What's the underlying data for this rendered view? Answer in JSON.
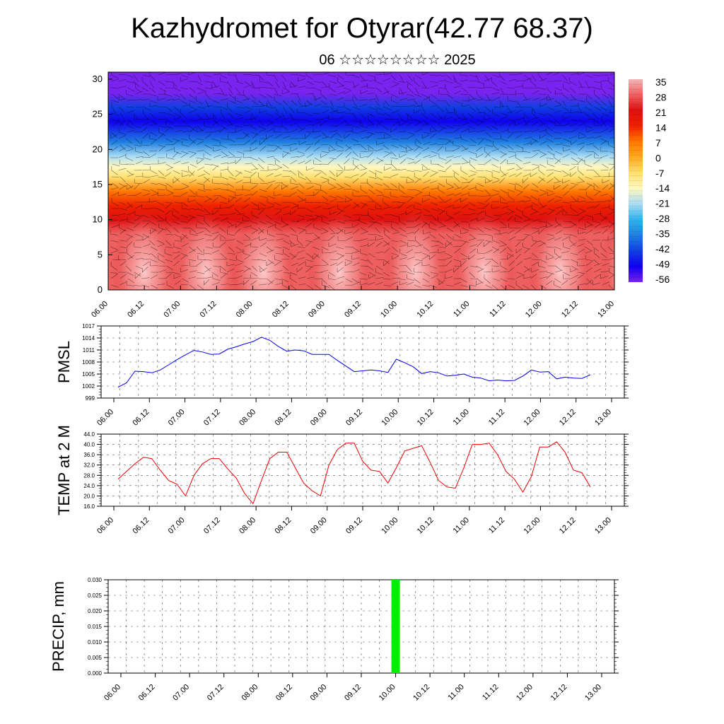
{
  "header": {
    "title": "Kazhydromet for Otyrar(42.77 68.37)",
    "subtitle": "06 ☆☆☆☆☆☆☆☆ 2025"
  },
  "colors": {
    "pmsl_line": "#0000ee",
    "temp_line": "#ee0000",
    "precip_bar": "#00ee00",
    "grid": "#555555"
  },
  "chart_data": [
    {
      "type": "heatmap",
      "title": "",
      "xlabel": "",
      "ylabel": "",
      "x_ticks": [
        "06.00",
        "06.12",
        "07.00",
        "07.12",
        "08.00",
        "08.12",
        "09.00",
        "09.12",
        "10.00",
        "10.12",
        "11.00",
        "11.12",
        "12.00",
        "12.12",
        "13.00"
      ],
      "y_ticks": [
        0,
        5,
        10,
        15,
        20,
        25,
        30
      ],
      "ylim": [
        0,
        31
      ],
      "colorbar": {
        "labels": [
          "35",
          "28",
          "21",
          "14",
          "7",
          "0",
          "-7",
          "-14",
          "-21",
          "-28",
          "-35",
          "-42",
          "-49",
          "-56"
        ],
        "stops": [
          {
            "value": 35,
            "color": "#f4b6b6"
          },
          {
            "value": 28,
            "color": "#ee6060"
          },
          {
            "value": 21,
            "color": "#dd1010"
          },
          {
            "value": 14,
            "color": "#ee2200"
          },
          {
            "value": 7,
            "color": "#ff7700"
          },
          {
            "value": 0,
            "color": "#ffaa22"
          },
          {
            "value": -7,
            "color": "#ffe070"
          },
          {
            "value": -14,
            "color": "#fff8c0"
          },
          {
            "value": -21,
            "color": "#aadcf4"
          },
          {
            "value": -28,
            "color": "#30b4ee"
          },
          {
            "value": -35,
            "color": "#2080e0"
          },
          {
            "value": -42,
            "color": "#1040e0"
          },
          {
            "value": -49,
            "color": "#1000ee"
          },
          {
            "value": -56,
            "color": "#7a22ee"
          }
        ]
      },
      "vertical_profile": [
        {
          "height": 0,
          "value": 24
        },
        {
          "height": 8,
          "value": 21
        },
        {
          "height": 10,
          "value": 14
        },
        {
          "height": 12,
          "value": 7
        },
        {
          "height": 14,
          "value": 0
        },
        {
          "height": 16,
          "value": -9
        },
        {
          "height": 17.5,
          "value": -15
        },
        {
          "height": 19,
          "value": -28
        },
        {
          "height": 21,
          "value": -40
        },
        {
          "height": 24,
          "value": -52
        },
        {
          "height": 26,
          "value": -45
        },
        {
          "height": 28,
          "value": -57
        },
        {
          "height": 31,
          "value": -60
        }
      ],
      "warm_maxima_x": [
        0.5,
        1.35,
        2.15,
        3.2,
        4.25,
        5.2,
        6.25,
        7.25
      ],
      "wind_barbs": true
    },
    {
      "type": "line",
      "ylabel": "PMSL",
      "xlabel": "",
      "ylim": [
        999,
        1017
      ],
      "y_ticks": [
        "1017",
        "1014",
        "1011",
        "1008",
        "1005",
        "1002",
        "999"
      ],
      "x_ticks": [
        "06.00",
        "06.12",
        "07.00",
        "07.12",
        "08.00",
        "08.12",
        "09.00",
        "09.12",
        "10.00",
        "10.12",
        "11.00",
        "11.12",
        "12.00",
        "12.12",
        "13.00"
      ],
      "x": [
        0,
        1,
        2,
        3,
        4,
        5,
        6,
        7,
        8,
        9,
        10,
        11,
        12,
        13,
        14,
        15,
        16,
        17,
        18,
        19,
        20,
        21,
        22,
        23,
        24,
        25,
        26,
        27,
        28,
        29,
        30,
        31,
        32,
        33,
        34,
        35,
        36,
        37,
        38,
        39,
        40,
        41,
        42,
        43,
        44,
        45,
        46,
        47,
        48,
        49,
        50,
        51,
        52,
        53,
        54,
        55,
        56
      ],
      "x_unit": "hours (3-hourly steps from 06.00)",
      "series": [
        {
          "values": [
            1001.7,
            1002.8,
            1005.7,
            1005.6,
            1005.3,
            1006.0,
            1007.3,
            1008.6,
            1009.8,
            1010.9,
            1010.5,
            1009.9,
            1010.0,
            1011.2,
            1011.8,
            1012.5,
            1013.1,
            1014.2,
            1013.4,
            1011.9,
            1010.7,
            1011.0,
            1010.8,
            1009.9,
            1009.9,
            1009.9,
            1008.4,
            1007.0,
            1005.6,
            1005.8,
            1006.0,
            1005.8,
            1005.4,
            1008.7,
            1007.8,
            1006.8,
            1005.1,
            1005.6,
            1005.3,
            1004.5,
            1004.7,
            1005.0,
            1004.2,
            1004.0,
            1003.3,
            1003.5,
            1003.3,
            1003.4,
            1004.5,
            1006.0,
            1005.5,
            1005.6,
            1003.8,
            1004.2,
            1004.0,
            1003.9,
            1004.8
          ]
        }
      ]
    },
    {
      "type": "line",
      "ylabel": "TEMP at 2 M",
      "xlabel": "",
      "ylim": [
        16.0,
        44.0
      ],
      "y_ticks": [
        "44.0",
        "40.0",
        "36.0",
        "32.0",
        "28.0",
        "24.0",
        "20.0",
        "16.0"
      ],
      "x_ticks": [
        "06.00",
        "06.12",
        "07.00",
        "07.12",
        "08.00",
        "08.12",
        "09.00",
        "09.12",
        "10.00",
        "10.12",
        "11.00",
        "11.12",
        "12.00",
        "12.12",
        "13.00"
      ],
      "series": [
        {
          "values": [
            26.5,
            29.5,
            32.5,
            35.0,
            34.5,
            30.0,
            26.0,
            24.5,
            20.0,
            28.0,
            32.5,
            34.5,
            34.5,
            30.5,
            27.0,
            21.0,
            17.0,
            26.0,
            34.5,
            37.0,
            37.0,
            31.0,
            25.0,
            22.0,
            20.0,
            32.0,
            38.0,
            40.5,
            40.5,
            33.5,
            30.0,
            29.5,
            25.0,
            31.0,
            37.5,
            38.5,
            39.5,
            33.0,
            26.0,
            23.5,
            23.0,
            31.0,
            40.0,
            40.0,
            40.5,
            36.0,
            29.5,
            26.5,
            21.5,
            27.5,
            39.0,
            39.0,
            41.0,
            37.0,
            30.0,
            29.0,
            23.5
          ]
        }
      ]
    },
    {
      "type": "bar",
      "ylabel": "PRECIP, mm",
      "xlabel": "",
      "ylim": [
        0.0,
        0.03
      ],
      "y_ticks": [
        "0.030",
        "0.025",
        "0.020",
        "0.015",
        "0.010",
        "0.005",
        "0.000"
      ],
      "x_ticks": [
        "06.00",
        "06.12",
        "07.00",
        "07.12",
        "08.00",
        "08.12",
        "09.00",
        "09.12",
        "10.00",
        "10.12",
        "11.00",
        "11.12",
        "12.00",
        "12.12",
        "13.00"
      ],
      "bars": [
        {
          "x": 32,
          "value": 0.03
        }
      ]
    }
  ]
}
